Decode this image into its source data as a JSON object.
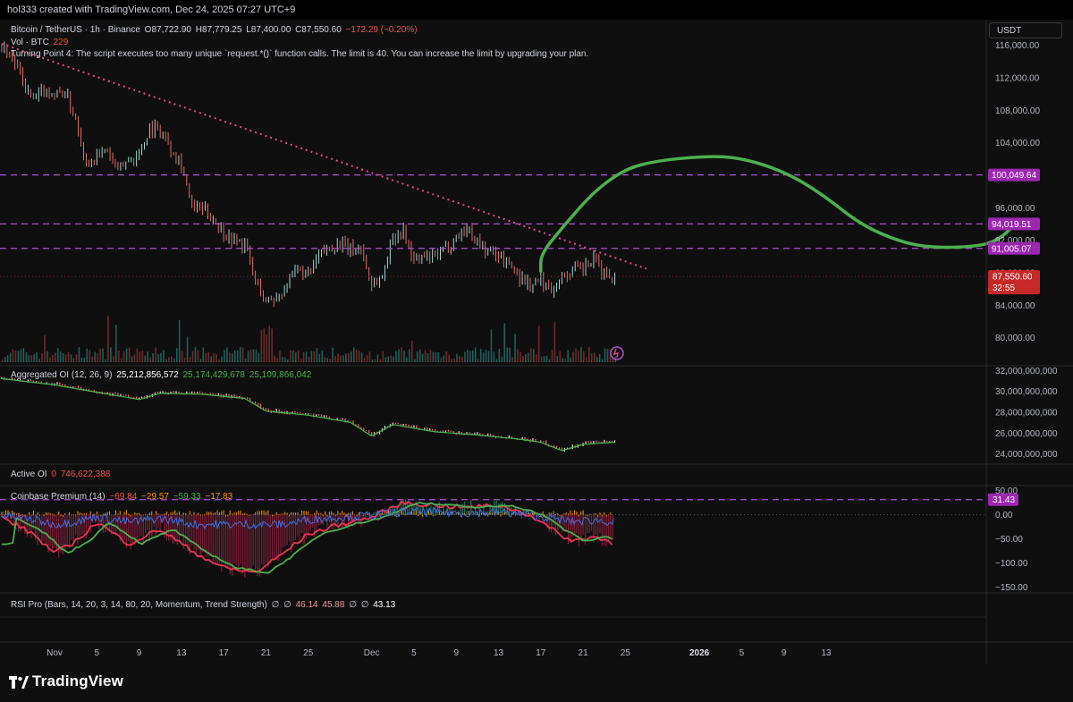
{
  "header": {
    "caption": "hol333 created with TradingView.com, Dec 24, 2025 07:27 UTC+9",
    "quote_unit": "USDT"
  },
  "main_legend": {
    "symbol": "Bitcoin / TetherUS · 1h · Binance",
    "open": "O87,722.90",
    "high": "H87,779.25",
    "low": "L87,400.00",
    "close": "C87,550.60",
    "change": "−172.29 (−0.20%)",
    "vol_label": "Vol · BTC",
    "vol_value": "229",
    "error": "Turning Point 4: The script executes too many unique `request.*()` function calls. The limit is 40. You can increase the limit by upgrading your plan."
  },
  "panes": {
    "oi_legend": {
      "label": "Aggregated OI (12, 26, 9)",
      "v1": "25,212,856,572",
      "v2": "25,174,429,678",
      "v3": "25,109,866,042"
    },
    "active_oi": {
      "label": "Active OI",
      "v0": "0",
      "v1": "746,622,388"
    },
    "coinbase": {
      "label": "Coinbase Premium (14)",
      "v1": "−69.84",
      "v2": "−29.57",
      "v3": "−59.33",
      "v4": "−17.83"
    },
    "rsi": {
      "label": "RSI Pro (Bars, 14, 20, 3, 14, 80, 20, Momentum, Trend Strength)",
      "na1": "∅",
      "na2": "∅",
      "v1": "46.14",
      "v2": "45.88",
      "na3": "∅",
      "na4": "∅",
      "v3": "43.13"
    }
  },
  "brand": {
    "logo_text": "TradingView"
  },
  "colors": {
    "up": "#26a69a",
    "down": "#ef5350",
    "forecast": "#4caf50",
    "level": "#b04fd6",
    "trendline": "#e04a8a",
    "price_tag": "#c62828"
  },
  "chart_data": [
    {
      "type": "line",
      "title": "Bitcoin / TetherUS · 1h · Binance",
      "y_axis_ticks": [
        80000,
        84000,
        88000,
        92000,
        96000,
        104000,
        108000,
        112000,
        116000
      ],
      "y_axis_labels": [
        "80,000.00",
        "84,000.00",
        "88,000.00",
        "92,000.00",
        "96,000.00",
        "104,000.00",
        "108,000.00",
        "112,000.00",
        "116,000.00"
      ],
      "ylim": [
        77000,
        118500
      ],
      "x_axis_labels": [
        {
          "label": "Nov",
          "date": "2025-11-01"
        },
        {
          "label": "5",
          "date": "2025-11-05"
        },
        {
          "label": "9",
          "date": "2025-11-09"
        },
        {
          "label": "13",
          "date": "2025-11-13"
        },
        {
          "label": "17",
          "date": "2025-11-17"
        },
        {
          "label": "21",
          "date": "2025-11-21"
        },
        {
          "label": "25",
          "date": "2025-11-25"
        },
        {
          "label": "Dec",
          "date": "2025-12-01"
        },
        {
          "label": "5",
          "date": "2025-12-05"
        },
        {
          "label": "9",
          "date": "2025-12-09"
        },
        {
          "label": "13",
          "date": "2025-12-13"
        },
        {
          "label": "17",
          "date": "2025-12-17"
        },
        {
          "label": "21",
          "date": "2025-12-21"
        },
        {
          "label": "25",
          "date": "2025-12-25"
        },
        {
          "label": "2026",
          "date": "2026-01-01"
        },
        {
          "label": "5",
          "date": "2026-01-05"
        },
        {
          "label": "9",
          "date": "2026-01-09"
        },
        {
          "label": "13",
          "date": "2026-01-13"
        }
      ],
      "price_path": [
        [
          "2025-10-27",
          116000
        ],
        [
          "2025-10-28",
          114500
        ],
        [
          "2025-10-29",
          111500
        ],
        [
          "2025-10-30",
          109000
        ],
        [
          "2025-10-31",
          110500
        ],
        [
          "2025-11-01",
          110000
        ],
        [
          "2025-11-02",
          110200
        ],
        [
          "2025-11-03",
          107000
        ],
        [
          "2025-11-04",
          101500
        ],
        [
          "2025-11-05",
          102500
        ],
        [
          "2025-11-06",
          103000
        ],
        [
          "2025-11-07",
          100500
        ],
        [
          "2025-11-08",
          102000
        ],
        [
          "2025-11-09",
          102500
        ],
        [
          "2025-11-10",
          106000
        ],
        [
          "2025-11-11",
          105500
        ],
        [
          "2025-11-12",
          103500
        ],
        [
          "2025-11-13",
          101500
        ],
        [
          "2025-11-14",
          96000
        ],
        [
          "2025-11-15",
          95800
        ],
        [
          "2025-11-16",
          94800
        ],
        [
          "2025-11-17",
          93000
        ],
        [
          "2025-11-18",
          92000
        ],
        [
          "2025-11-19",
          91500
        ],
        [
          "2025-11-20",
          87000
        ],
        [
          "2025-11-21",
          84500
        ],
        [
          "2025-11-22",
          85000
        ],
        [
          "2025-11-23",
          86500
        ],
        [
          "2025-11-24",
          88500
        ],
        [
          "2025-11-25",
          87500
        ],
        [
          "2025-11-26",
          90000
        ],
        [
          "2025-11-27",
          91200
        ],
        [
          "2025-11-28",
          91500
        ],
        [
          "2025-11-29",
          90800
        ],
        [
          "2025-11-30",
          91000
        ],
        [
          "2025-12-01",
          86500
        ],
        [
          "2025-12-02",
          87500
        ],
        [
          "2025-12-03",
          92500
        ],
        [
          "2025-12-04",
          93200
        ],
        [
          "2025-12-05",
          89500
        ],
        [
          "2025-12-06",
          89800
        ],
        [
          "2025-12-07",
          90000
        ],
        [
          "2025-12-08",
          91000
        ],
        [
          "2025-12-09",
          92500
        ],
        [
          "2025-12-10",
          93500
        ],
        [
          "2025-12-11",
          92000
        ],
        [
          "2025-12-12",
          90500
        ],
        [
          "2025-12-13",
          90300
        ],
        [
          "2025-12-14",
          89000
        ],
        [
          "2025-12-15",
          87500
        ],
        [
          "2025-12-16",
          86500
        ],
        [
          "2025-12-17",
          87000
        ],
        [
          "2025-12-18",
          86000
        ],
        [
          "2025-12-19",
          87500
        ],
        [
          "2025-12-20",
          88200
        ],
        [
          "2025-12-21",
          88500
        ],
        [
          "2025-12-22",
          89500
        ],
        [
          "2025-12-23",
          88000
        ],
        [
          "2025-12-24",
          87550.6
        ]
      ],
      "horizontal_levels": [
        100049.64,
        94019.51,
        91005.07
      ],
      "level_labels": [
        "100,049.64",
        "94,019.51",
        "91,005.07"
      ],
      "last_price": {
        "value": 87550.6,
        "label": "87,550.60",
        "countdown": "32:55"
      },
      "trendline": [
        [
          "2025-10-27",
          116200
        ],
        [
          "2025-12-27",
          88500
        ]
      ],
      "forecast_path": [
        [
          "2025-12-17",
          88200
        ],
        [
          "2025-12-17",
          90300
        ],
        [
          "2025-12-19",
          93500
        ],
        [
          "2025-12-22",
          98000
        ],
        [
          "2025-12-25",
          100800
        ],
        [
          "2025-12-28",
          101800
        ],
        [
          "2026-01-01",
          102300
        ],
        [
          "2026-01-04",
          102300
        ],
        [
          "2026-01-07",
          101400
        ],
        [
          "2026-01-10",
          99800
        ],
        [
          "2026-01-13",
          97300
        ],
        [
          "2026-01-16",
          94200
        ],
        [
          "2026-01-19",
          92300
        ],
        [
          "2026-01-22",
          91200
        ],
        [
          "2026-01-26",
          91100
        ],
        [
          "2026-01-29",
          91700
        ],
        [
          "2026-01-31",
          94100
        ]
      ]
    },
    {
      "type": "line",
      "title": "Aggregated OI (12, 26, 9)",
      "y_axis_labels": [
        "24,000,000,000",
        "26,000,000,000",
        "28,000,000,000",
        "30,000,000,000",
        "32,000,000,000"
      ],
      "y_axis_ticks": [
        24000000000,
        26000000000,
        28000000000,
        30000000000,
        32000000000
      ],
      "ylim": [
        23200000000,
        32200000000
      ],
      "path": [
        [
          "2025-10-27",
          31300000000
        ],
        [
          "2025-11-01",
          30700000000
        ],
        [
          "2025-11-05",
          30000000000
        ],
        [
          "2025-11-09",
          29300000000
        ],
        [
          "2025-11-11",
          29900000000
        ],
        [
          "2025-11-15",
          29800000000
        ],
        [
          "2025-11-19",
          29400000000
        ],
        [
          "2025-11-21",
          28200000000
        ],
        [
          "2025-11-25",
          27800000000
        ],
        [
          "2025-11-29",
          27100000000
        ],
        [
          "2025-12-01",
          25800000000
        ],
        [
          "2025-12-03",
          26900000000
        ],
        [
          "2025-12-07",
          26200000000
        ],
        [
          "2025-12-11",
          25900000000
        ],
        [
          "2025-12-15",
          25500000000
        ],
        [
          "2025-12-17",
          25200000000
        ],
        [
          "2025-12-19",
          24400000000
        ],
        [
          "2025-12-21",
          25000000000
        ],
        [
          "2025-12-24",
          25212856572
        ]
      ]
    },
    {
      "type": "line",
      "title": "Coinbase Premium (14)",
      "y_axis_labels": [
        "50.00",
        "0.00",
        "−50.00",
        "−100.00",
        "−150.00"
      ],
      "y_axis_ticks": [
        50,
        0,
        -50,
        -100,
        -150
      ],
      "ylim": [
        -160,
        55
      ],
      "level": {
        "value": 31.43,
        "label": "31.43"
      },
      "path": [
        [
          "2025-10-27",
          -5
        ],
        [
          "2025-10-30",
          -40
        ],
        [
          "2025-11-01",
          -80
        ],
        [
          "2025-11-03",
          -55
        ],
        [
          "2025-11-05",
          -15
        ],
        [
          "2025-11-08",
          -60
        ],
        [
          "2025-11-11",
          -30
        ],
        [
          "2025-11-14",
          -75
        ],
        [
          "2025-11-17",
          -110
        ],
        [
          "2025-11-20",
          -120
        ],
        [
          "2025-11-22",
          -90
        ],
        [
          "2025-11-25",
          -40
        ],
        [
          "2025-11-28",
          -20
        ],
        [
          "2025-12-01",
          -5
        ],
        [
          "2025-12-04",
          25
        ],
        [
          "2025-12-07",
          20
        ],
        [
          "2025-12-10",
          15
        ],
        [
          "2025-12-13",
          20
        ],
        [
          "2025-12-16",
          0
        ],
        [
          "2025-12-18",
          -30
        ],
        [
          "2025-12-20",
          -55
        ],
        [
          "2025-12-22",
          -45
        ],
        [
          "2025-12-24",
          -59.33
        ]
      ]
    }
  ]
}
